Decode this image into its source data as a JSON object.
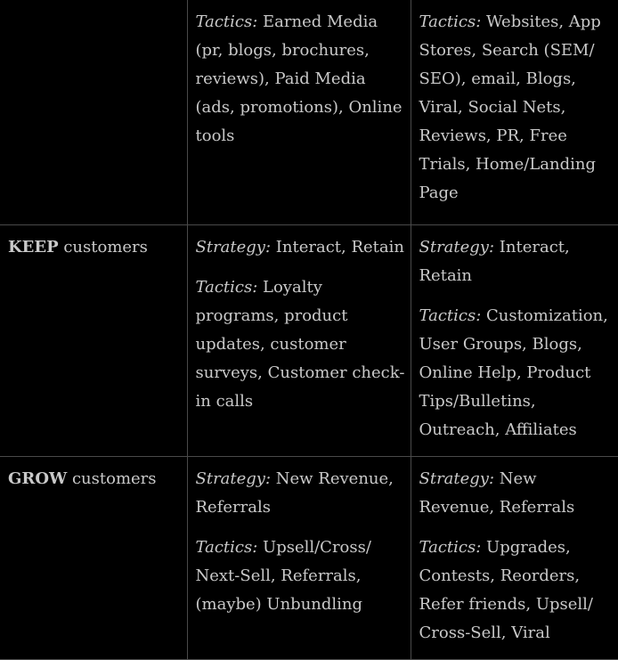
{
  "rows": [
    {
      "head_kw": "",
      "head_rest": "",
      "col2": [
        {
          "label": "Tactics:",
          "text": " Earned Media (pr, blogs, brochures, reviews), Paid Media (ads, promotions), Online tools"
        }
      ],
      "col3": [
        {
          "label": "Tactics:",
          "text": " Websites, App Stores, Search (SEM/ SEO), email, Blogs, Viral, Social Nets, Reviews, PR, Free Trials, Home/Landing Page"
        }
      ]
    },
    {
      "head_kw": "KEEP",
      "head_rest": " customers",
      "col2": [
        {
          "label": "Strategy:",
          "text": " Interact, Retain"
        },
        {
          "label": "Tactics:",
          "text": " Loyalty programs, product updates, customer surveys, Customer check-in calls"
        }
      ],
      "col3": [
        {
          "label": "Strategy:",
          "text": " Interact, Retain"
        },
        {
          "label": "Tactics:",
          "text": " Customization, User Groups, Blogs, Online Help, Product Tips/Bulletins, Outreach, Affiliates"
        }
      ]
    },
    {
      "head_kw": "GROW",
      "head_rest": " customers",
      "col2": [
        {
          "label": "Strategy:",
          "text": " New Revenue, Referrals"
        },
        {
          "label": "Tactics:",
          "text": " Upsell/Cross/ Next-Sell, Referrals, (maybe) Unbundling"
        }
      ],
      "col3": [
        {
          "label": "Strategy:",
          "text": " New Revenue, Referrals"
        },
        {
          "label": "Tactics:",
          "text": " Upgrades, Contests, Reorders, Refer friends, Upsell/ Cross-Sell, Viral"
        }
      ]
    }
  ]
}
